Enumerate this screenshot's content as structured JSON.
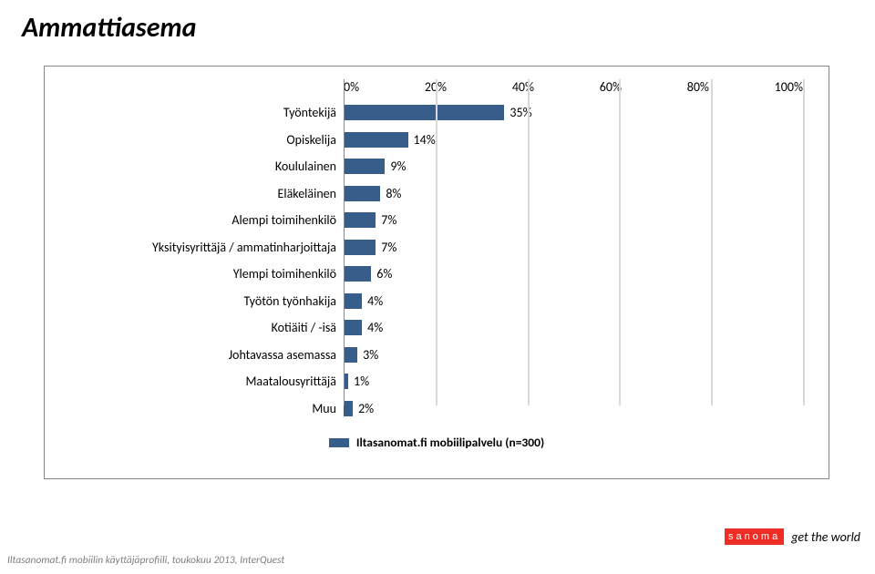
{
  "title": "Ammattiasema",
  "chart": {
    "type": "bar",
    "categories": [
      "Työntekijä",
      "Opiskelija",
      "Koululainen",
      "Eläkeläinen",
      "Alempi toimihenkilö",
      "Yksityisyrittäjä / ammatinharjoittaja",
      "Ylempi toimihenkilö",
      "Työtön työnhakija",
      "Kotiäiti / -isä",
      "Johtavassa asemassa",
      "Maatalousyrittäjä",
      "Muu"
    ],
    "values": [
      35,
      14,
      9,
      8,
      7,
      7,
      6,
      4,
      4,
      3,
      1,
      2
    ],
    "value_labels": [
      "35%",
      "14%",
      "9%",
      "8%",
      "7%",
      "7%",
      "6%",
      "4%",
      "4%",
      "3%",
      "1%",
      "2%"
    ],
    "bar_color": "#385d8a",
    "x_ticks": [
      "0%",
      "20%",
      "40%",
      "60%",
      "80%",
      "100%"
    ],
    "xlim": [
      0,
      100
    ],
    "grid_color": "#d9d9d9",
    "axis_color": "#888888",
    "label_fontsize": 14
  },
  "legend": {
    "label": "Iltasanomat.fi mobiilipalvelu (n=300)",
    "color": "#385d8a"
  },
  "footer": "Iltasanomat.fi mobiilin käyttäjäprofiili, toukokuu 2013, InterQuest",
  "brand": {
    "logo_text": "sanoma",
    "tagline": "get the world",
    "logo_bg": "#ee2e24"
  }
}
